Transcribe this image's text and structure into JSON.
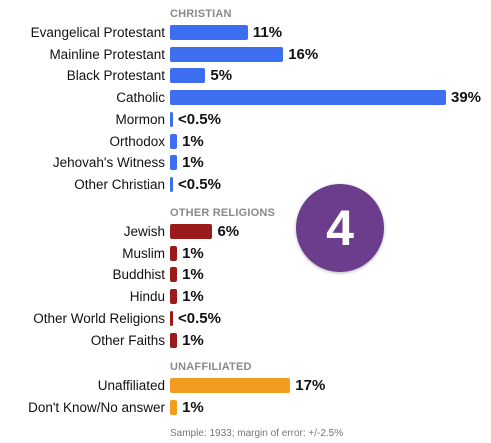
{
  "badge": "4",
  "footnote": "Sample: 1933; margin of error: +/-2.5%",
  "chart_data": {
    "type": "bar",
    "orientation": "horizontal",
    "xlim": [
      0,
      39
    ],
    "groups": [
      {
        "title": "CHRISTIAN",
        "color": "#3d6ef0",
        "categories": [
          "Evangelical Protestant",
          "Mainline Protestant",
          "Black Protestant",
          "Catholic",
          "Mormon",
          "Orthodox",
          "Jehovah's Witness",
          "Other Christian"
        ],
        "values": [
          11,
          16,
          5,
          39,
          0.3,
          1,
          1,
          0.3
        ],
        "labels": [
          "11%",
          "16%",
          "5%",
          "39%",
          "<0.5%",
          "1%",
          "1%",
          "<0.5%"
        ]
      },
      {
        "title": "OTHER RELIGIONS",
        "color": "#9b1b1b",
        "categories": [
          "Jewish",
          "Muslim",
          "Buddhist",
          "Hindu",
          "Other World Religions",
          "Other Faiths"
        ],
        "values": [
          6,
          1,
          1,
          1,
          0.3,
          1
        ],
        "labels": [
          "6%",
          "1%",
          "1%",
          "1%",
          "<0.5%",
          "1%"
        ]
      },
      {
        "title": "UNAFFILIATED",
        "color": "#f39c1f",
        "categories": [
          "Unaffiliated",
          "Don't Know/No answer"
        ],
        "values": [
          17,
          1
        ],
        "labels": [
          "17%",
          "1%"
        ]
      }
    ]
  }
}
